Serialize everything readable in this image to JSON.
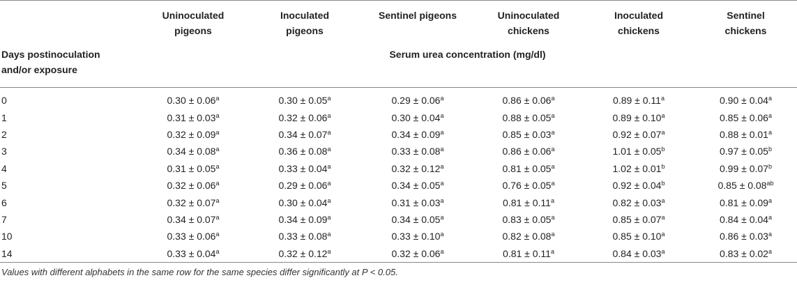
{
  "columns": [
    "Uninoculated pigeons",
    "Inoculated pigeons",
    "Sentinel pigeons",
    "Uninoculated chickens",
    "Inoculated chickens",
    "Sentinel chickens"
  ],
  "columns_lines": [
    [
      "Uninoculated",
      "pigeons"
    ],
    [
      "Inoculated",
      "pigeons"
    ],
    [
      "Sentinel pigeons",
      ""
    ],
    [
      "Uninoculated",
      "chickens"
    ],
    [
      "Inoculated",
      "chickens"
    ],
    [
      "Sentinel",
      "chickens"
    ]
  ],
  "row_header": [
    "Days postinoculation",
    "and/or exposure"
  ],
  "measure_label": "Serum urea concentration (mg/dl)",
  "rows": [
    {
      "day": "0",
      "cells": [
        [
          "0.30 ± 0.06",
          "a"
        ],
        [
          "0.30 ± 0.05",
          "a"
        ],
        [
          "0.29 ± 0.06",
          "a"
        ],
        [
          "0.86 ± 0.06",
          "a"
        ],
        [
          "0.89 ± 0.11",
          "a"
        ],
        [
          "0.90 ± 0.04",
          "a"
        ]
      ]
    },
    {
      "day": "1",
      "cells": [
        [
          "0.31 ± 0.03",
          "a"
        ],
        [
          "0.32 ± 0.06",
          "a"
        ],
        [
          "0.30 ± 0.04",
          "a"
        ],
        [
          "0.88 ± 0.05",
          "a"
        ],
        [
          "0.89 ± 0.10",
          "a"
        ],
        [
          "0.85 ± 0.06",
          "a"
        ]
      ]
    },
    {
      "day": "2",
      "cells": [
        [
          "0.32 ± 0.09",
          "a"
        ],
        [
          "0.34 ± 0.07",
          "a"
        ],
        [
          "0.34 ± 0.09",
          "a"
        ],
        [
          "0.85 ± 0.03",
          "a"
        ],
        [
          "0.92 ± 0.07",
          "a"
        ],
        [
          "0.88 ± 0.01",
          "a"
        ]
      ]
    },
    {
      "day": "3",
      "cells": [
        [
          "0.34 ± 0.08",
          "a"
        ],
        [
          "0.36 ± 0.08",
          "a"
        ],
        [
          "0.33 ± 0.08",
          "a"
        ],
        [
          "0.86 ± 0.06",
          "a"
        ],
        [
          "1.01 ± 0.05",
          "b"
        ],
        [
          "0.97 ± 0.05",
          "b"
        ]
      ]
    },
    {
      "day": "4",
      "cells": [
        [
          "0.31 ± 0.05",
          "a"
        ],
        [
          "0.33 ± 0.04",
          "a"
        ],
        [
          "0.32 ± 0.12",
          "a"
        ],
        [
          "0.81 ± 0.05",
          "a"
        ],
        [
          "1.02 ± 0.01",
          "b"
        ],
        [
          "0.99 ± 0.07",
          "b"
        ]
      ]
    },
    {
      "day": "5",
      "cells": [
        [
          "0.32 ± 0.06",
          "a"
        ],
        [
          "0.29 ± 0.06",
          "a"
        ],
        [
          "0.34 ± 0.05",
          "a"
        ],
        [
          "0.76 ± 0.05",
          "a"
        ],
        [
          "0.92 ± 0.04",
          "b"
        ],
        [
          "0.85 ± 0.08",
          "ab"
        ]
      ]
    },
    {
      "day": "6",
      "cells": [
        [
          "0.32 ± 0.07",
          "a"
        ],
        [
          "0.30 ± 0.04",
          "a"
        ],
        [
          "0.31 ± 0.03",
          "a"
        ],
        [
          "0.81 ± 0.11",
          "a"
        ],
        [
          "0.82 ± 0.03",
          "a"
        ],
        [
          "0.81 ± 0.09",
          "a"
        ]
      ]
    },
    {
      "day": "7",
      "cells": [
        [
          "0.34 ± 0.07",
          "a"
        ],
        [
          "0.34 ± 0.09",
          "a"
        ],
        [
          "0.34 ± 0.05",
          "a"
        ],
        [
          "0.83 ± 0.05",
          "a"
        ],
        [
          "0.85 ± 0.07",
          "a"
        ],
        [
          "0.84 ± 0.04",
          "a"
        ]
      ]
    },
    {
      "day": "10",
      "cells": [
        [
          "0.33 ± 0.06",
          "a"
        ],
        [
          "0.33 ± 0.08",
          "a"
        ],
        [
          "0.33 ± 0.10",
          "a"
        ],
        [
          "0.82 ± 0.08",
          "a"
        ],
        [
          "0.85 ± 0.10",
          "a"
        ],
        [
          "0.86 ± 0.03",
          "a"
        ]
      ]
    },
    {
      "day": "14",
      "cells": [
        [
          "0.33 ± 0.04",
          "a"
        ],
        [
          "0.32 ± 0.12",
          "a"
        ],
        [
          "0.32 ± 0.06",
          "a"
        ],
        [
          "0.81 ± 0.11",
          "a"
        ],
        [
          "0.84 ± 0.03",
          "a"
        ],
        [
          "0.83 ± 0.02",
          "a"
        ]
      ]
    }
  ],
  "footnote": "Values with different alphabets in the same row for the same species differ significantly at P < 0.05."
}
